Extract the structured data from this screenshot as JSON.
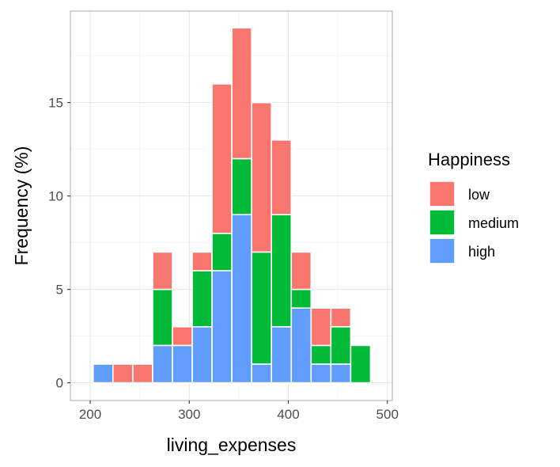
{
  "chart_data": {
    "type": "bar",
    "stacked": true,
    "xlabel": "living_expenses",
    "ylabel": "Frequency (%)",
    "xlim": [
      180,
      505
    ],
    "ylim": [
      -0.95,
      19.9
    ],
    "xticks": [
      200,
      300,
      400,
      500
    ],
    "yticks": [
      0,
      5,
      10,
      15
    ],
    "bin_width": 20,
    "bin_centers": [
      213,
      233,
      253,
      273,
      293,
      313,
      333,
      353,
      373,
      393,
      413,
      433,
      453,
      473
    ],
    "series": [
      {
        "name": "high",
        "color": "#619CFF",
        "values": [
          1,
          0,
          0,
          2,
          2,
          3,
          6,
          9,
          1,
          3,
          4,
          1,
          1,
          0
        ]
      },
      {
        "name": "medium",
        "color": "#00BA38",
        "values": [
          0,
          0,
          0,
          3,
          0,
          3,
          2,
          3,
          6,
          6,
          1,
          1,
          2,
          2
        ]
      },
      {
        "name": "low",
        "color": "#F8766D",
        "values": [
          0,
          1,
          1,
          2,
          1,
          1,
          8,
          7,
          8,
          4,
          2,
          2,
          1,
          0
        ]
      }
    ],
    "legend": {
      "title": "Happiness",
      "position": "right",
      "order": [
        "low",
        "medium",
        "high"
      ]
    },
    "grid": true,
    "theme": "light"
  }
}
